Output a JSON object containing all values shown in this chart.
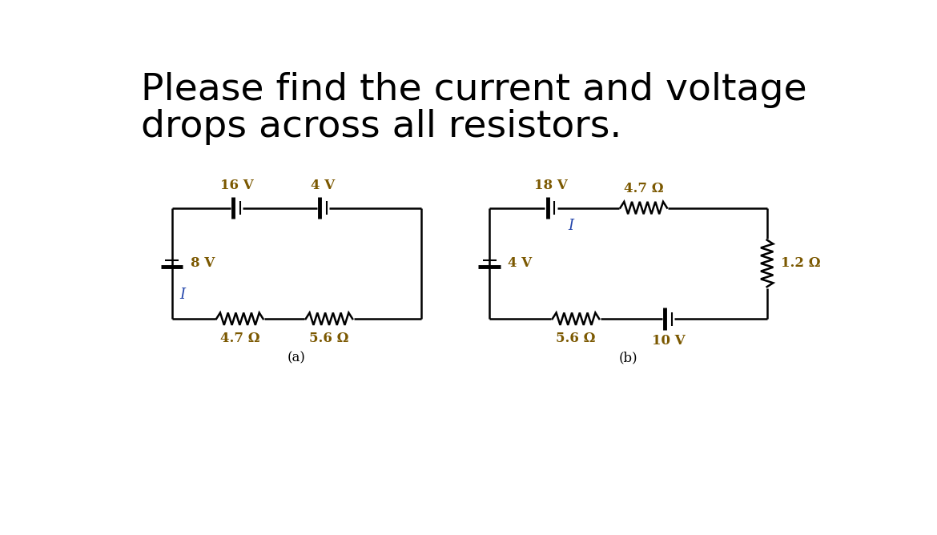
{
  "title_line1": "Please find the current and voltage",
  "title_line2": "drops across all resistors.",
  "title_fontsize": 34,
  "title_color": "#000000",
  "background_color": "#ffffff",
  "circuit_color": "#000000",
  "label_color_voltage": "#7B5800",
  "label_color_current": "#2244aa",
  "label_fontsize": 12,
  "omega": "Ω"
}
